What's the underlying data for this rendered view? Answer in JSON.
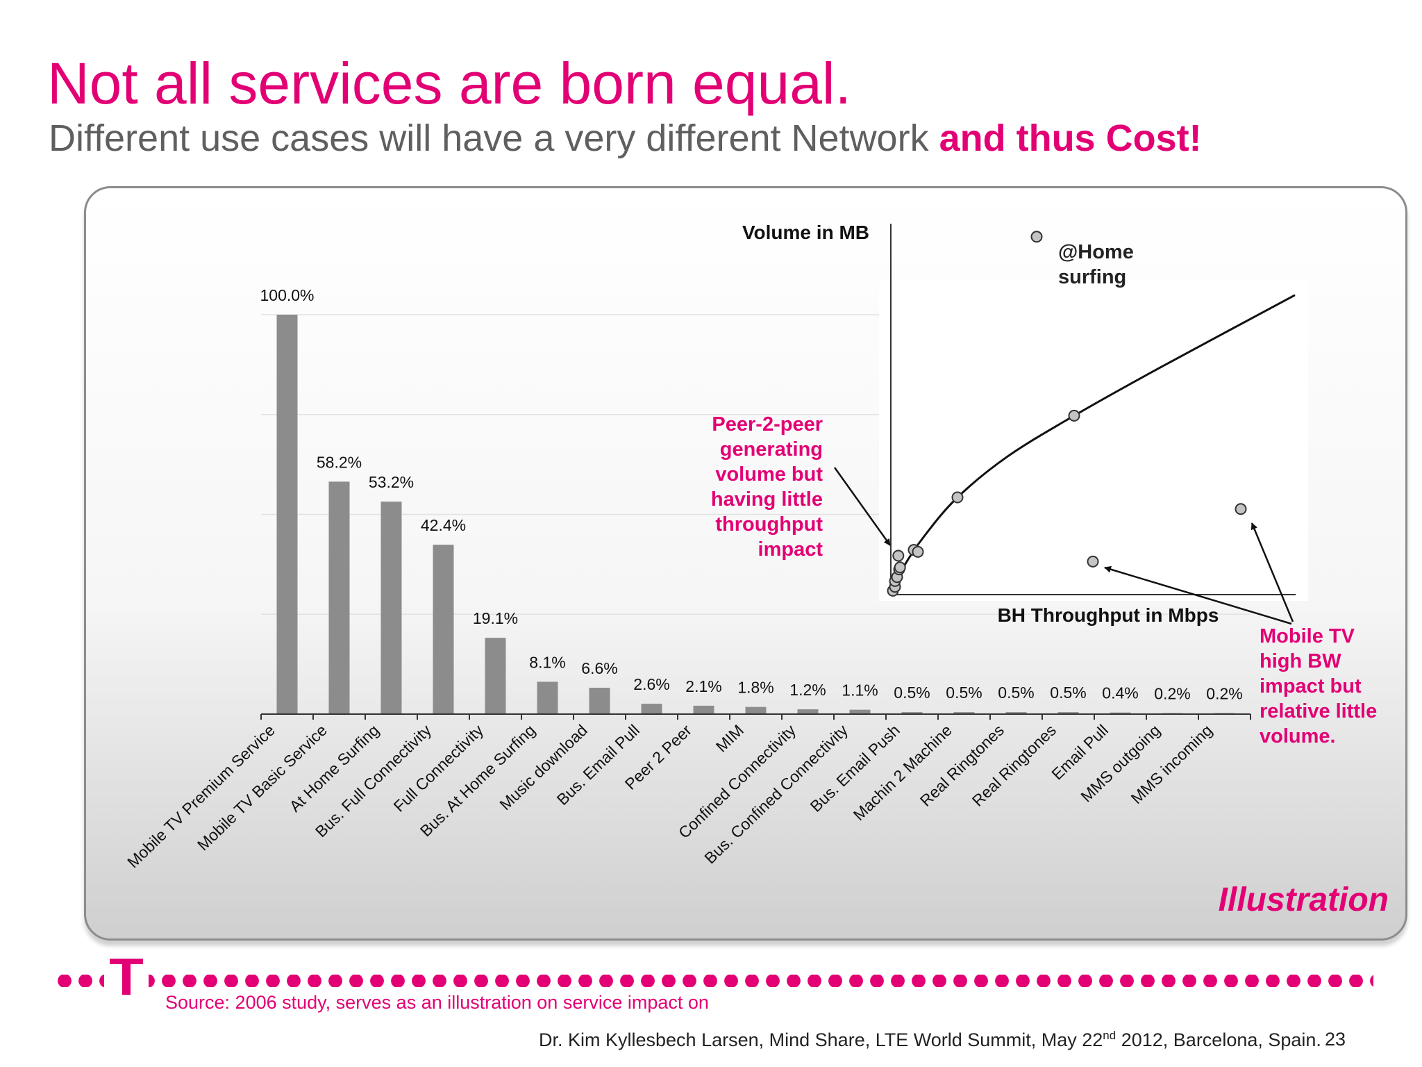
{
  "slide": {
    "title": "Not all services are born equal.",
    "subtitle_plain": "Different use cases will have a very different Network",
    "subtitle_accent": "and thus Cost!",
    "illustration_label": "Illustration",
    "source": "Source: 2006 study, serves as an illustration on service impact on",
    "credit_before": "Dr. Kim Kyllesbech Larsen, Mind Share, LTE World Summit, May 22",
    "credit_sup": "nd",
    "credit_after": " 2012, Barcelona, Spain.",
    "page_number": "23"
  },
  "colors": {
    "brand": "#e20074",
    "bar": "#8c8c8c",
    "text_gray": "#5f5f5f"
  },
  "chart_data": [
    {
      "type": "bar",
      "categories": [
        "Mobile TV Premium Service",
        "Mobile TV Basic Service",
        "At Home Surfing",
        "Bus. Full Connectivity",
        "Full Connectivity",
        "Bus. At Home Surfing",
        "Music download",
        "Bus. Email Pull",
        "Peer 2 Peer",
        "MIM",
        "Confined Connectivity",
        "Bus. Confined Connectivity",
        "Bus. Email Push",
        "Machin 2 Machine",
        "Real Ringtones",
        "Real Ringtones",
        "Email Pull",
        "MMS outgoing",
        "MMS incoming"
      ],
      "values": [
        100.0,
        58.2,
        53.2,
        42.4,
        19.1,
        8.1,
        6.6,
        2.6,
        2.1,
        1.8,
        1.2,
        1.1,
        0.5,
        0.5,
        0.5,
        0.5,
        0.4,
        0.2,
        0.2
      ],
      "data_labels": [
        "100.0%",
        "58.2%",
        "53.2%",
        "42.4%",
        "19.1%",
        "8.1%",
        "6.6%",
        "2.6%",
        "2.1%",
        "1.8%",
        "1.2%",
        "1.1%",
        "0.5%",
        "0.5%",
        "0.5%",
        "0.5%",
        "0.4%",
        "0.2%",
        "0.2%"
      ],
      "ylim": [
        0,
        100
      ],
      "grid": true,
      "title": "",
      "xlabel": "",
      "ylabel": ""
    },
    {
      "type": "scatter",
      "xlabel": "BH Throughput in Mbps",
      "ylabel": "Volume in MB",
      "xlim": [
        0,
        100
      ],
      "ylim": [
        0,
        100
      ],
      "points": [
        {
          "x": 0.5,
          "y": 1.0
        },
        {
          "x": 1.0,
          "y": 2.0
        },
        {
          "x": 1.0,
          "y": 3.5
        },
        {
          "x": 1.5,
          "y": 4.5
        },
        {
          "x": 2.0,
          "y": 6.5
        },
        {
          "x": 1.8,
          "y": 10.0
        },
        {
          "x": 2.2,
          "y": 7.0
        },
        {
          "x": 5.5,
          "y": 11.5
        },
        {
          "x": 6.5,
          "y": 11.0
        },
        {
          "x": 16.0,
          "y": 25.0
        },
        {
          "x": 44.0,
          "y": 46.0
        },
        {
          "x": 48.5,
          "y": 8.5
        },
        {
          "x": 84.0,
          "y": 22.0
        }
      ],
      "legend_point": {
        "x": 35.0,
        "y": 92.0
      },
      "trend": [
        {
          "x": 0.0,
          "y": 0.0
        },
        {
          "x": 3.0,
          "y": 7.0
        },
        {
          "x": 8.0,
          "y": 15.0
        },
        {
          "x": 16.0,
          "y": 25.0
        },
        {
          "x": 28.0,
          "y": 35.5
        },
        {
          "x": 44.0,
          "y": 46.0
        },
        {
          "x": 64.0,
          "y": 58.0
        },
        {
          "x": 97.0,
          "y": 77.0
        }
      ],
      "annotations": [
        {
          "text": "@Home\nsurfing",
          "color": "#222222"
        },
        {
          "text": "Peer-2-peer\ngenerating\nvolume but\nhaving little\nthroughput\nimpact",
          "color": "#e20074"
        },
        {
          "text": "Mobile TV\nhigh BW\nimpact but\nrelative little\nvolume.",
          "color": "#e20074"
        }
      ]
    }
  ]
}
